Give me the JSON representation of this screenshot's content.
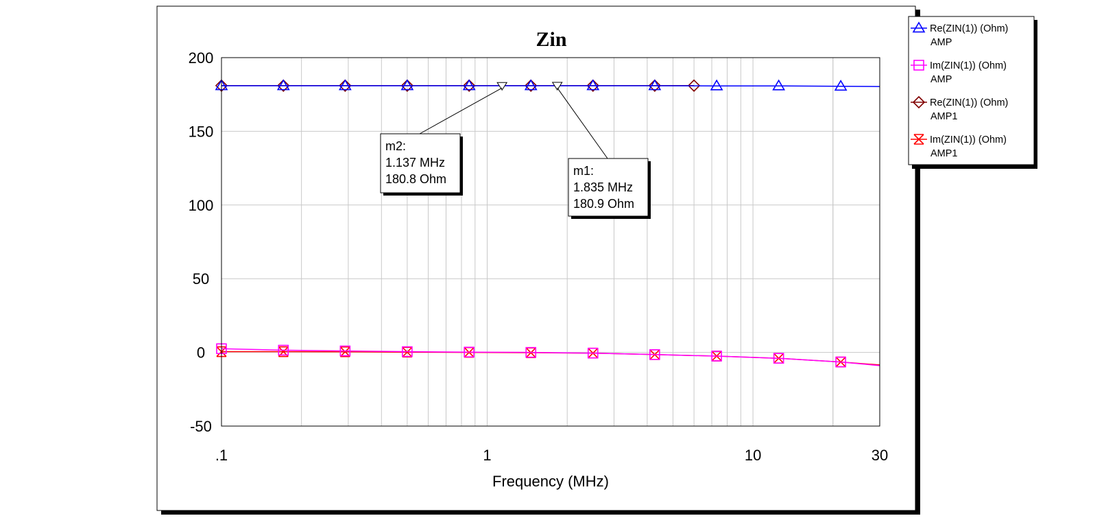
{
  "chart_data": {
    "type": "line",
    "title": "Zin",
    "xlabel": "Frequency (MHz)",
    "ylabel": "",
    "x_scale": "log",
    "xlim": [
      0.1,
      30
    ],
    "ylim": [
      -50,
      200
    ],
    "x_ticks": [
      ".1",
      "1",
      "10",
      "30"
    ],
    "y_ticks": [
      "200",
      "150",
      "100",
      "50",
      "0",
      "-50"
    ],
    "grid": true,
    "legend_position": "right",
    "series": [
      {
        "name": "Re(ZIN(1)) (Ohm)",
        "name_sub": "AMP",
        "color": "#0000ff",
        "marker": "triangle",
        "x": [
          0.1,
          0.171,
          0.292,
          0.5,
          0.855,
          1.46,
          2.5,
          4.27,
          7.3,
          12.5,
          21.4,
          30
        ],
        "y": [
          180.9,
          180.9,
          180.9,
          180.9,
          180.9,
          180.9,
          180.9,
          180.9,
          180.8,
          180.8,
          180.6,
          180.4
        ]
      },
      {
        "name": "Im(ZIN(1)) (Ohm)",
        "name_sub": "AMP",
        "color": "#ff00ff",
        "marker": "square",
        "x": [
          0.1,
          0.171,
          0.292,
          0.5,
          0.855,
          1.46,
          2.5,
          4.27,
          7.3,
          12.5,
          21.4,
          30
        ],
        "y": [
          2.5,
          1.5,
          1.0,
          0.5,
          0.2,
          0,
          -0.5,
          -1.5,
          -2.5,
          -4,
          -6.5,
          -9
        ]
      },
      {
        "name": "Re(ZIN(1)) (Ohm)",
        "name_sub": "AMP1",
        "color": "#800000",
        "marker": "diamond",
        "x": [
          0.1,
          0.171,
          0.292,
          0.5,
          0.855,
          1.46,
          2.5,
          4.27,
          6
        ],
        "y": [
          181.0,
          181.0,
          181.0,
          181.0,
          181.0,
          181.0,
          181.0,
          181.0,
          181.0
        ]
      },
      {
        "name": "Im(ZIN(1)) (Ohm)",
        "name_sub": "AMP1",
        "color": "#ff0000",
        "marker": "x",
        "x": [
          0.1,
          0.171,
          0.292,
          0.5,
          0.855,
          1.46,
          2.5,
          4.27,
          7.3,
          12.5,
          21.4,
          30
        ],
        "y": [
          0.5,
          0.5,
          0.4,
          0.2,
          0,
          -0.2,
          -0.5,
          -1.5,
          -2.5,
          -4,
          -6.5,
          -8.5
        ]
      }
    ],
    "annotations": [
      {
        "name": "m2",
        "x_label": "1.137 MHz",
        "y_label": "180.8 Ohm",
        "x": 1.137,
        "y": 180.8
      },
      {
        "name": "m1",
        "x_label": "1.835 MHz",
        "y_label": "180.9 Ohm",
        "x": 1.835,
        "y": 180.9
      }
    ]
  }
}
